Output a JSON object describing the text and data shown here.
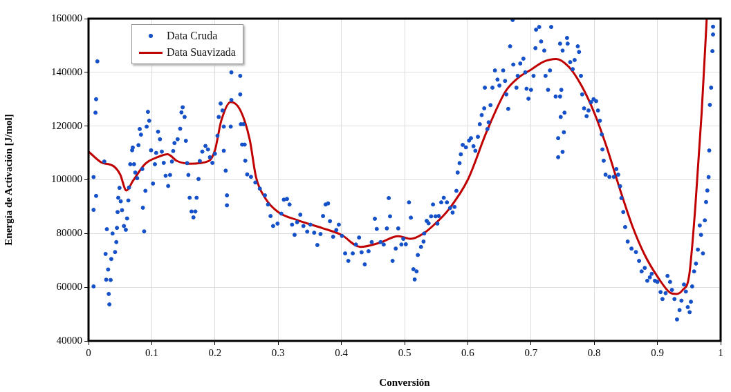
{
  "chart_data": {
    "type": "scatter",
    "xlabel": "Conversión",
    "ylabel": "Energía de Activación [J/mol]",
    "xlim": [
      0,
      1
    ],
    "xticks": [
      0,
      0.1,
      0.2,
      0.3,
      0.4,
      0.5,
      0.6,
      0.7,
      0.8,
      0.9,
      1
    ],
    "ylim": [
      40000,
      160000
    ],
    "yticks": [
      40000,
      60000,
      80000,
      100000,
      120000,
      140000,
      160000
    ],
    "grid": true,
    "legend": "top left",
    "marker": "circle",
    "series": [
      {
        "name": "Data Cruda",
        "color": "#1450c8",
        "x": [
          0.008,
          0.008,
          0.011,
          0.012,
          0.012,
          0.014,
          0.008,
          0.025,
          0.027,
          0.028,
          0.029,
          0.031,
          0.032,
          0.033,
          0.035,
          0.036,
          0.038,
          0.042,
          0.044,
          0.045,
          0.046,
          0.047,
          0.049,
          0.051,
          0.053,
          0.056,
          0.059,
          0.061,
          0.063,
          0.064,
          0.066,
          0.069,
          0.07,
          0.072,
          0.074,
          0.077,
          0.079,
          0.081,
          0.083,
          0.085,
          0.086,
          0.088,
          0.09,
          0.092,
          0.094,
          0.096,
          0.099,
          0.102,
          0.105,
          0.107,
          0.11,
          0.113,
          0.116,
          0.119,
          0.122,
          0.126,
          0.129,
          0.132,
          0.134,
          0.136,
          0.141,
          0.145,
          0.147,
          0.149,
          0.152,
          0.154,
          0.156,
          0.158,
          0.16,
          0.163,
          0.166,
          0.169,
          0.171,
          0.174,
          0.176,
          0.18,
          0.185,
          0.189,
          0.192,
          0.196,
          0.2,
          0.204,
          0.206,
          0.209,
          0.212,
          0.214,
          0.214,
          0.217,
          0.219,
          0.219,
          0.225,
          0.226,
          0.226,
          0.24,
          0.24,
          0.241,
          0.243,
          0.245,
          0.247,
          0.248,
          0.251,
          0.257,
          0.264,
          0.271,
          0.279,
          0.284,
          0.288,
          0.292,
          0.299,
          0.305,
          0.309,
          0.314,
          0.318,
          0.322,
          0.326,
          0.33,
          0.335,
          0.34,
          0.346,
          0.351,
          0.357,
          0.362,
          0.367,
          0.371,
          0.375,
          0.379,
          0.382,
          0.387,
          0.392,
          0.396,
          0.401,
          0.406,
          0.411,
          0.418,
          0.423,
          0.428,
          0.432,
          0.437,
          0.443,
          0.448,
          0.453,
          0.456,
          0.462,
          0.467,
          0.472,
          0.475,
          0.477,
          0.481,
          0.486,
          0.49,
          0.495,
          0.498,
          0.502,
          0.507,
          0.51,
          0.514,
          0.516,
          0.519,
          0.521,
          0.526,
          0.53,
          0.531,
          0.535,
          0.538,
          0.542,
          0.545,
          0.549,
          0.552,
          0.554,
          0.558,
          0.562,
          0.567,
          0.572,
          0.576,
          0.579,
          0.582,
          0.584,
          0.587,
          0.589,
          0.592,
          0.597,
          0.602,
          0.605,
          0.609,
          0.612,
          0.616,
          0.619,
          0.622,
          0.626,
          0.627,
          0.631,
          0.633,
          0.636,
          0.639,
          0.643,
          0.647,
          0.65,
          0.656,
          0.659,
          0.661,
          0.664,
          0.667,
          0.671,
          0.672,
          0.677,
          0.679,
          0.683,
          0.688,
          0.691,
          0.693,
          0.696,
          0.7,
          0.704,
          0.707,
          0.708,
          0.713,
          0.716,
          0.721,
          0.723,
          0.727,
          0.73,
          0.732,
          0.739,
          0.743,
          0.743,
          0.746,
          0.746,
          0.747,
          0.748,
          0.75,
          0.75,
          0.752,
          0.753,
          0.757,
          0.758,
          0.762,
          0.766,
          0.769,
          0.774,
          0.776,
          0.779,
          0.781,
          0.784,
          0.788,
          0.791,
          0.795,
          0.799,
          0.803,
          0.806,
          0.809,
          0.812,
          0.813,
          0.815,
          0.818,
          0.824,
          0.831,
          0.835,
          0.838,
          0.841,
          0.843,
          0.846,
          0.849,
          0.853,
          0.859,
          0.866,
          0.871,
          0.875,
          0.88,
          0.884,
          0.888,
          0.891,
          0.896,
          0.9,
          0.905,
          0.908,
          0.913,
          0.916,
          0.92,
          0.923,
          0.927,
          0.931,
          0.935,
          0.938,
          0.942,
          0.945,
          0.948,
          0.951,
          0.953,
          0.955,
          0.958,
          0.961,
          0.964,
          0.967,
          0.969,
          0.972,
          0.975,
          0.977,
          0.979,
          0.981,
          0.982,
          0.983,
          0.985,
          0.987,
          0.988,
          0.988
        ],
        "values": [
          101000,
          60300,
          125000,
          130000,
          94000,
          144100,
          88800,
          106800,
          72400,
          62800,
          81600,
          66600,
          57500,
          53600,
          62700,
          70500,
          80000,
          73100,
          76800,
          82100,
          88000,
          93300,
          97000,
          92000,
          88700,
          82800,
          81400,
          85600,
          92300,
          97100,
          105800,
          111000,
          112000,
          105800,
          102700,
          100600,
          112900,
          118900,
          116800,
          104000,
          89600,
          80800,
          95900,
          119800,
          125300,
          122000,
          111000,
          98600,
          105800,
          110000,
          117900,
          115100,
          110500,
          106300,
          101500,
          97700,
          101800,
          106800,
          110700,
          113700,
          115100,
          119000,
          125100,
          127000,
          123400,
          114500,
          106200,
          101800,
          93300,
          88200,
          86000,
          88200,
          93300,
          100300,
          107000,
          110500,
          112600,
          111300,
          108400,
          106300,
          109700,
          116400,
          123400,
          128400,
          125800,
          119800,
          110800,
          103400,
          94200,
          90500,
          119800,
          140000,
          129700,
          138700,
          131800,
          120700,
          113100,
          120700,
          113100,
          107100,
          102000,
          101100,
          99000,
          96700,
          94200,
          90800,
          86500,
          82800,
          83700,
          87400,
          92600,
          92900,
          90800,
          83300,
          79500,
          84200,
          87000,
          82800,
          80700,
          83300,
          80300,
          75700,
          79800,
          86500,
          90800,
          91200,
          84600,
          78800,
          81300,
          83300,
          79100,
          72600,
          69800,
          72600,
          75900,
          78500,
          73000,
          68500,
          73400,
          76800,
          85500,
          81700,
          76800,
          75900,
          81900,
          93200,
          86400,
          69800,
          74400,
          81900,
          75900,
          78000,
          76000,
          91600,
          85900,
          66700,
          62900,
          65900,
          72000,
          75000,
          77000,
          80000,
          84700,
          83800,
          86400,
          90800,
          86400,
          83700,
          86500,
          91600,
          93300,
          91600,
          89500,
          87800,
          89900,
          95900,
          102700,
          106200,
          109500,
          113000,
          112100,
          114600,
          115500,
          112500,
          110800,
          116000,
          120700,
          124100,
          126600,
          134300,
          118900,
          121400,
          127800,
          134300,
          140700,
          137300,
          135100,
          140700,
          136800,
          131800,
          126400,
          149700,
          159500,
          142900,
          134300,
          138700,
          143300,
          145100,
          140000,
          133900,
          130200,
          133500,
          138700,
          149000,
          155900,
          156900,
          151500,
          148100,
          138700,
          133500,
          140700,
          156900,
          131000,
          115500,
          108400,
          150700,
          131000,
          123400,
          133500,
          148100,
          110400,
          117700,
          125000,
          152800,
          150700,
          143800,
          141200,
          144600,
          149700,
          147600,
          138700,
          131800,
          126600,
          123700,
          125800,
          128900,
          130000,
          129300,
          125800,
          122000,
          116900,
          111300,
          107100,
          101900,
          101100,
          101100,
          104000,
          101900,
          97600,
          93200,
          88000,
          82400,
          77000,
          74400,
          73100,
          69800,
          65900,
          67200,
          62400,
          63700,
          65000,
          62400,
          62000,
          58200,
          55600,
          57800,
          64200,
          62000,
          59000,
          55600,
          48000,
          51500,
          55000,
          61000,
          58400,
          52600,
          50700,
          54600,
          60300,
          65900,
          68800,
          74000,
          83000,
          79500,
          72600,
          84900,
          91700,
          96000,
          101000,
          110900,
          127900,
          134300,
          147900,
          154100,
          157000
        ]
      },
      {
        "name": "Data Suavizada",
        "type": "line",
        "color": "#c00000",
        "marker": "none",
        "line_style": "solid",
        "x": [
          0,
          0.02,
          0.04,
          0.05,
          0.06,
          0.07,
          0.09,
          0.11,
          0.125,
          0.14,
          0.16,
          0.19,
          0.2,
          0.21,
          0.225,
          0.24,
          0.255,
          0.265,
          0.28,
          0.3,
          0.33,
          0.37,
          0.4,
          0.43,
          0.46,
          0.49,
          0.51,
          0.53,
          0.55,
          0.57,
          0.6,
          0.63,
          0.66,
          0.68,
          0.7,
          0.72,
          0.74,
          0.76,
          0.78,
          0.8,
          0.82,
          0.84,
          0.86,
          0.88,
          0.9,
          0.92,
          0.93,
          0.94,
          0.95,
          0.96,
          0.97,
          0.978
        ],
        "values": [
          110500,
          106500,
          105000,
          102000,
          96000,
          99500,
          106000,
          108500,
          109500,
          107000,
          106000,
          107000,
          111000,
          122000,
          129000,
          126000,
          115000,
          101000,
          93000,
          88000,
          85000,
          82000,
          79500,
          75000,
          76500,
          79000,
          78000,
          80000,
          84000,
          89000,
          100000,
          118000,
          133000,
          138000,
          141000,
          144000,
          145000,
          142000,
          135000,
          125000,
          112000,
          97000,
          83000,
          72000,
          64000,
          58000,
          57500,
          59000,
          64000,
          90000,
          125000,
          160000
        ]
      }
    ]
  }
}
